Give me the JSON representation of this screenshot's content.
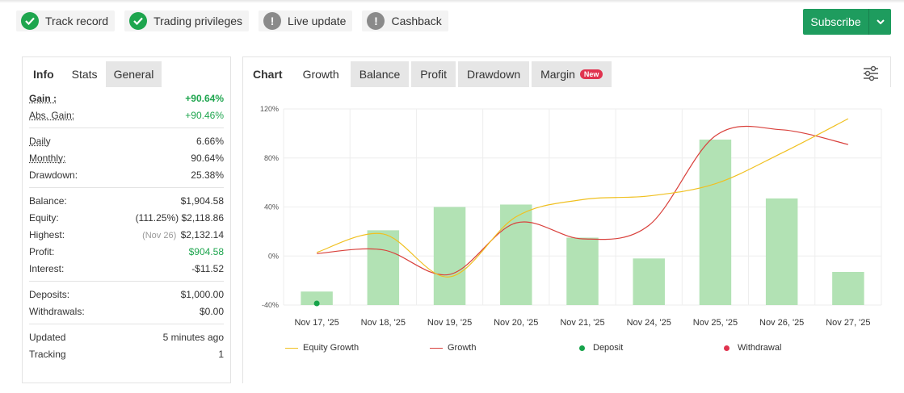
{
  "badges": [
    {
      "label": "Track record",
      "status": "ok",
      "icon": "check-icon"
    },
    {
      "label": "Trading privileges",
      "status": "ok",
      "icon": "check-icon"
    },
    {
      "label": "Live update",
      "status": "warn",
      "icon": "exclamation-icon"
    },
    {
      "label": "Cashback",
      "status": "warn",
      "icon": "exclamation-icon"
    }
  ],
  "subscribe": {
    "label": "Subscribe",
    "icon": "chevron-down-icon"
  },
  "left_tabs": [
    "Info",
    "Stats",
    "General"
  ],
  "stats": {
    "gain": {
      "label": "Gain :",
      "value": "+90.64%"
    },
    "abs_gain": {
      "label": "Abs. Gain:",
      "value": "+90.46%"
    },
    "daily": {
      "label": "Daily",
      "value": "6.66%"
    },
    "monthly": {
      "label": "Monthly:",
      "value": "90.64%"
    },
    "drawdown": {
      "label": "Drawdown:",
      "value": "25.38%"
    },
    "balance": {
      "label": "Balance:",
      "value": "$1,904.58"
    },
    "equity": {
      "label": "Equity:",
      "prefix": "(111.25%)",
      "value": "$2,118.86"
    },
    "highest": {
      "label": "Highest:",
      "prefix": "(Nov 26)",
      "value": "$2,132.14"
    },
    "profit": {
      "label": "Profit:",
      "value": "$904.58"
    },
    "interest": {
      "label": "Interest:",
      "value": "-$11.52"
    },
    "deposits": {
      "label": "Deposits:",
      "value": "$1,000.00"
    },
    "withdrawals": {
      "label": "Withdrawals:",
      "value": "$0.00"
    },
    "updated": {
      "label": "Updated",
      "value": "5 minutes ago"
    },
    "tracking": {
      "label": "Tracking",
      "value": "1"
    }
  },
  "chart_tabs": {
    "chart": "Chart",
    "growth": "Growth",
    "balance": "Balance",
    "profit": "Profit",
    "drawdown": "Drawdown",
    "margin": "Margin",
    "new_badge": "New"
  },
  "settings_icon": "sliders-icon",
  "colors": {
    "green": "#1ea54e",
    "bar": "#b2e2b4",
    "equity_line": "#f0c020",
    "growth_line": "#d9413c",
    "deposit_dot": "#16a34a",
    "withdrawal_dot": "#e0334f"
  },
  "chart_data": {
    "type": "bar",
    "categories": [
      "Nov 17, '25",
      "Nov 18, '25",
      "Nov 19, '25",
      "Nov 20, '25",
      "Nov 21, '25",
      "Nov 24, '25",
      "Nov 25, '25",
      "Nov 26, '25",
      "Nov 27, '25"
    ],
    "ylim": [
      -40,
      120
    ],
    "yticks": [
      -40,
      0,
      40,
      80,
      120
    ],
    "ytick_labels": [
      "-40%",
      "0%",
      "40%",
      "80%",
      "120%"
    ],
    "grid": true,
    "legend_position": "bottom",
    "series": [
      {
        "name": "Growth",
        "type": "bar",
        "values": [
          -29,
          21,
          40,
          42,
          15,
          -2,
          95,
          47,
          -13
        ]
      },
      {
        "name": "Equity Growth",
        "type": "line",
        "values": [
          3,
          18,
          -17,
          32,
          46,
          49,
          59,
          84,
          112
        ]
      },
      {
        "name": "Growth",
        "type": "line",
        "values": [
          2,
          5,
          -15,
          27,
          14,
          25,
          98,
          103,
          91
        ]
      },
      {
        "name": "Deposit",
        "type": "marker",
        "x_index": 0,
        "value": -40
      }
    ],
    "legend": [
      "Equity Growth",
      "Growth",
      "Deposit",
      "Withdrawal"
    ]
  }
}
